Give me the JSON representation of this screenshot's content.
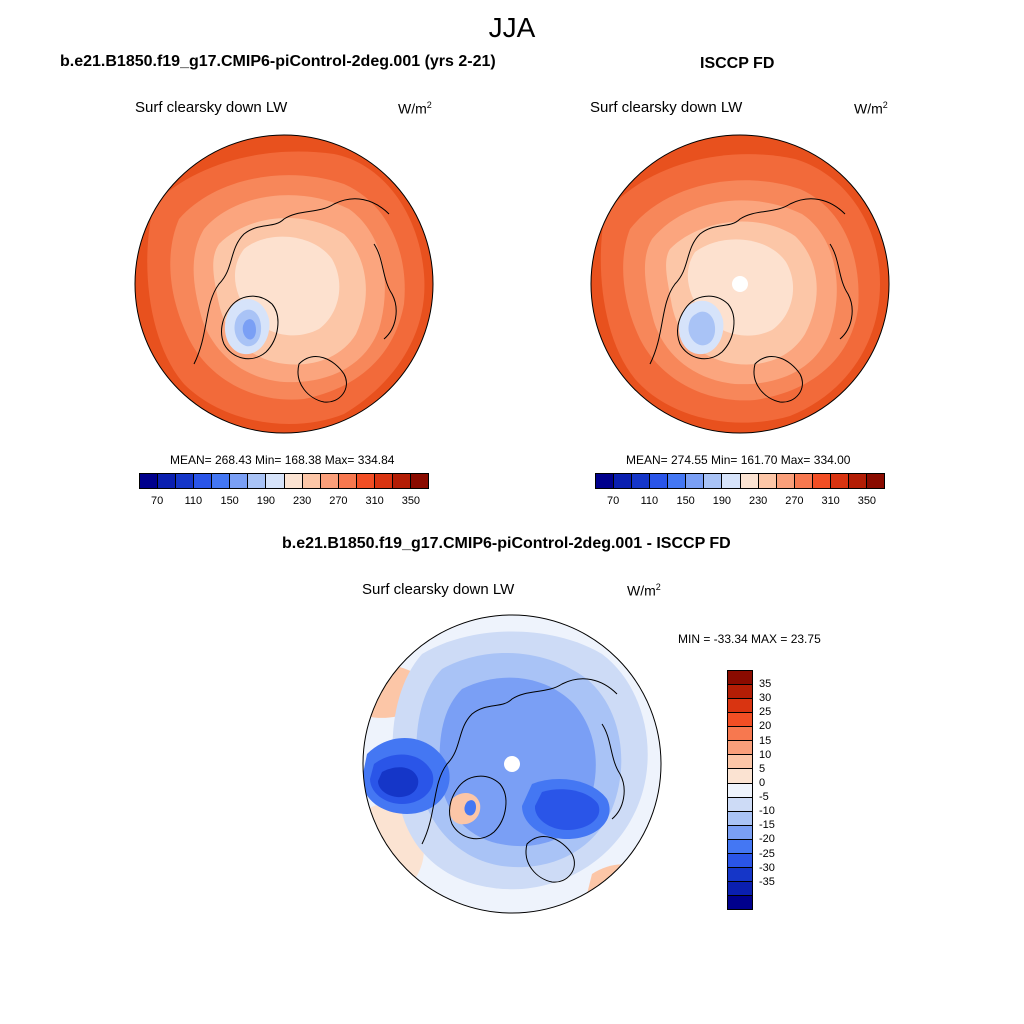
{
  "figure": {
    "season": "JJA"
  },
  "panels": {
    "model": {
      "title": "b.e21.B1850.f19_g17.CMIP6-piControl-2deg.001 (yrs 2-21)",
      "variable": "Surf clearsky down LW",
      "units_base": "W/m",
      "units_exp": "2",
      "stats": "MEAN= 268.43  Min= 168.38  Max= 334.84",
      "mean": 268.43,
      "min": 168.38,
      "max": 334.84
    },
    "obs": {
      "title": "ISCCP FD",
      "variable": "Surf clearsky down LW",
      "units_base": "W/m",
      "units_exp": "2",
      "stats": "MEAN= 274.55  Min= 161.70  Max= 334.00",
      "mean": 274.55,
      "min": 161.7,
      "max": 334.0
    },
    "diff": {
      "title": "b.e21.B1850.f19_g17.CMIP6-piControl-2deg.001 - ISCCP FD",
      "variable": "Surf clearsky down LW",
      "units_base": "W/m",
      "units_exp": "2",
      "stats": "MIN = -33.34 MAX =  23.75",
      "min": -33.34,
      "max": 23.75
    }
  },
  "colorbars": {
    "absolute": {
      "labels": [
        "70",
        "110",
        "150",
        "190",
        "230",
        "270",
        "310",
        "350"
      ],
      "colors": [
        "#00008c",
        "#0a1fb0",
        "#1536c8",
        "#2a55e8",
        "#4477f3",
        "#7a9ff5",
        "#a9c3f6",
        "#d6e3fa",
        "#fbe3d2",
        "#fcc6a7",
        "#fa9f7a",
        "#f7784f",
        "#f24e24",
        "#d93411",
        "#b31d05",
        "#8a0b00"
      ]
    },
    "difference": {
      "labels": [
        "35",
        "30",
        "25",
        "20",
        "15",
        "10",
        "5",
        "0",
        "-5",
        "-10",
        "-15",
        "-20",
        "-25",
        "-30",
        "-35"
      ],
      "colors": [
        "#8a0b00",
        "#b31d05",
        "#d93411",
        "#f24e24",
        "#f7784f",
        "#fa9f7a",
        "#fcc6a7",
        "#fbe3d2",
        "#eef3fc",
        "#cddbf6",
        "#a9c3f6",
        "#7a9ff5",
        "#4477f3",
        "#2a55e8",
        "#1536c8",
        "#0a1fb0",
        "#00008c"
      ]
    }
  },
  "map_colors": {
    "model_field": [
      "#e8511e",
      "#f26a3a",
      "#f7875a",
      "#fba57e",
      "#fcc6a7",
      "#fde1cf",
      "#d6e3fa",
      "#a9c3f6",
      "#7a9ff5"
    ],
    "obs_field": [
      "#e8511e",
      "#f26a3a",
      "#f7875a",
      "#fba57e",
      "#fcc6a7",
      "#fde1cf",
      "#d6e3fa",
      "#a9c3f6",
      "#7a9ff5"
    ],
    "diff_field": [
      "#fcc6a7",
      "#fbe3d2",
      "#eef3fc",
      "#cddbf6",
      "#a9c3f6",
      "#7a9ff5",
      "#4477f3",
      "#2a55e8",
      "#1536c8"
    ],
    "missing": "#ffffff"
  }
}
